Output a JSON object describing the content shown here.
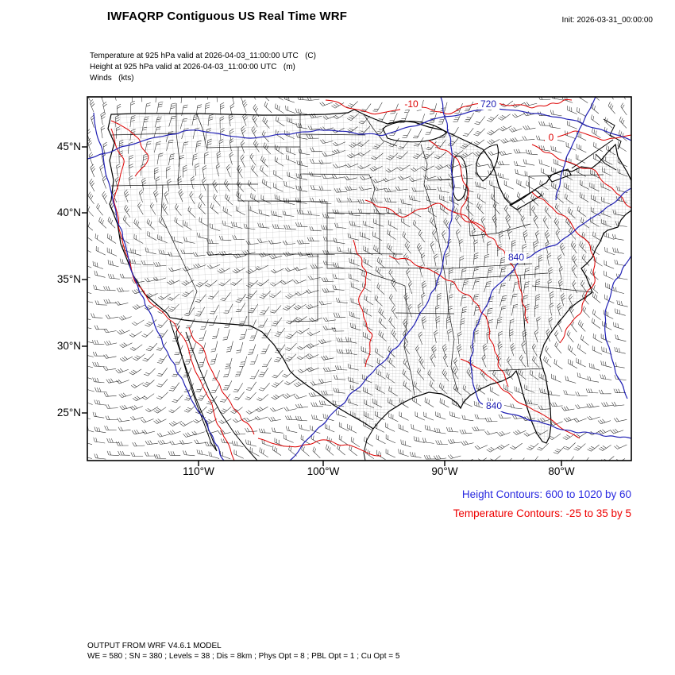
{
  "header": {
    "title": "IWFAQRP Contiguous US Real Time WRF",
    "init_label": "Init: 2026-03-31_00:00:00"
  },
  "subtitle": {
    "line1": "Temperature at 925 hPa valid at 2026-04-03_11:00:00 UTC   (C)",
    "line2": "Height at 925 hPa valid at 2026-04-03_11:00:00 UTC   (m)",
    "line3": "Winds   (kts)"
  },
  "axes": {
    "lat_ticks": [
      "45°N",
      "40°N",
      "35°N",
      "30°N",
      "25°N"
    ],
    "lon_ticks": [
      "110°W",
      "100°W",
      "90°W",
      "80°W"
    ]
  },
  "legend": {
    "height": "Height Contours: 600 to 1020 by 60",
    "temperature": "Temperature Contours: -25 to 35 by 5"
  },
  "contour_labels": {
    "height_720": "720",
    "height_840_mid": "840",
    "height_840_gulf": "840",
    "temp_m10": "-10",
    "temp_0": "0"
  },
  "footer": {
    "line1": "OUTPUT FROM WRF V4.6.1 MODEL",
    "line2": "WE = 580 ; SN = 380 ; Levels = 38 ; Dis = 8km ; Phys Opt = 8 ; PBL Opt = 1 ; Cu Opt = 5"
  },
  "colors": {
    "temperature": "#dd0000",
    "height": "#2020b4",
    "legend_height": "#2a2ae0",
    "legend_temperature": "#ee0000",
    "barbs": "#000000",
    "frame": "#000000"
  },
  "chart_data": {
    "type": "heatmap",
    "subtype": "contour-weather-map",
    "title": "IWFAQRP Contiguous US Real Time WRF",
    "region": "Contiguous US",
    "init_time": "2026-03-31_00:00:00",
    "valid_time": "2026-04-03_11:00:00 UTC",
    "lat_ticks_deg_n": [
      45,
      40,
      35,
      30,
      25
    ],
    "lon_ticks_deg_w": [
      110,
      100,
      90,
      80
    ],
    "fields": [
      {
        "name": "Temperature",
        "level": "925 hPa",
        "units": "C",
        "contour_min": -25,
        "contour_max": 35,
        "contour_interval": 5,
        "visible_labeled_contours": [
          -10,
          0
        ],
        "color": "red"
      },
      {
        "name": "Height",
        "level": "925 hPa",
        "units": "m",
        "contour_min": 600,
        "contour_max": 1020,
        "contour_interval": 60,
        "visible_labeled_contours": [
          720,
          840,
          840
        ],
        "color": "blue"
      },
      {
        "name": "Winds",
        "units": "kts",
        "style": "barbs",
        "color": "black"
      }
    ],
    "model": "WRF V4.6.1",
    "grid": {
      "WE": 580,
      "SN": 380,
      "Levels": 38,
      "Dis_km": 8,
      "Phys_Opt": 8,
      "PBL_Opt": 1,
      "Cu_Opt": 5
    }
  }
}
